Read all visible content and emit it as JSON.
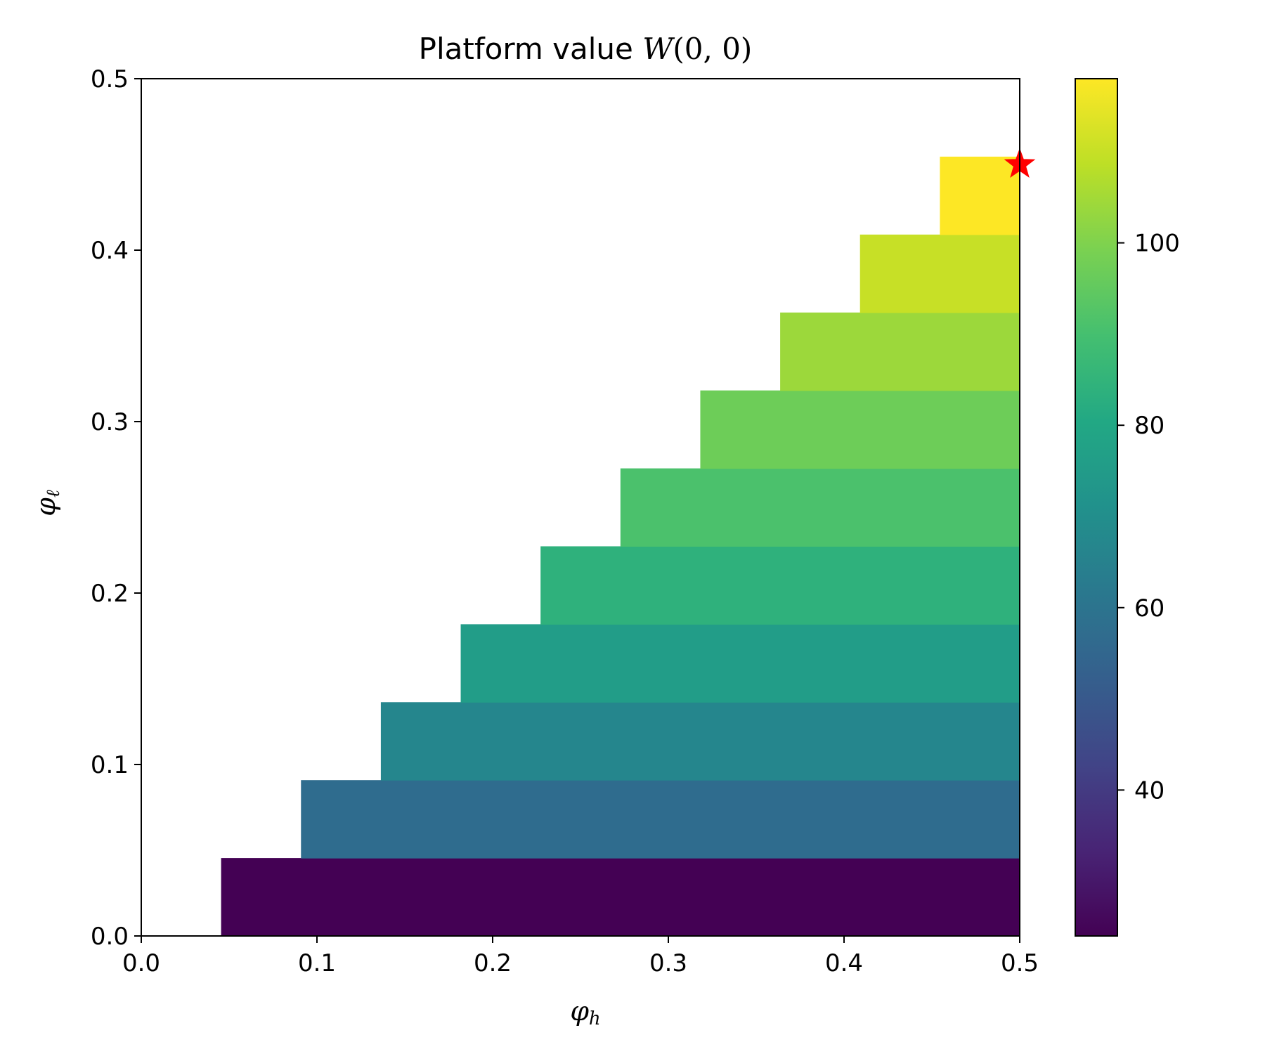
{
  "chart_data": {
    "type": "heatmap",
    "title": "Platform value W(0, 0)",
    "title_parts": {
      "prefix": "Platform value ",
      "var": "W",
      "args": "(0, 0)"
    },
    "xlabel": "φh",
    "xlabel_parts": {
      "base": "φ",
      "sub": "h"
    },
    "ylabel": "φℓ",
    "ylabel_parts": {
      "base": "φ",
      "sub": "ℓ"
    },
    "xlim": [
      0,
      0.5
    ],
    "ylim": [
      0,
      0.5
    ],
    "xticks": [
      "0.0",
      "0.1",
      "0.2",
      "0.3",
      "0.4",
      "0.5"
    ],
    "yticks": [
      "0.0",
      "0.1",
      "0.2",
      "0.3",
      "0.4",
      "0.5"
    ],
    "colormap": "viridis",
    "colorbar": {
      "range": [
        24,
        118
      ],
      "ticks": [
        40,
        60,
        80,
        100
      ],
      "tick_labels": [
        "40",
        "60",
        "80",
        "100"
      ]
    },
    "rows": [
      {
        "phi_l": 0.0,
        "x_start": 0.04545,
        "value": 24
      },
      {
        "phi_l": 0.04545,
        "x_start": 0.09091,
        "value": 57
      },
      {
        "phi_l": 0.09091,
        "x_start": 0.13636,
        "value": 67
      },
      {
        "phi_l": 0.13636,
        "x_start": 0.18182,
        "value": 76
      },
      {
        "phi_l": 0.18182,
        "x_start": 0.22727,
        "value": 84
      },
      {
        "phi_l": 0.22727,
        "x_start": 0.27273,
        "value": 91
      },
      {
        "phi_l": 0.27273,
        "x_start": 0.31818,
        "value": 97
      },
      {
        "phi_l": 0.31818,
        "x_start": 0.36364,
        "value": 104
      },
      {
        "phi_l": 0.36364,
        "x_start": 0.40909,
        "value": 110
      },
      {
        "phi_l": 0.40909,
        "x_start": 0.45455,
        "value": 118
      }
    ],
    "row_height": 0.04545,
    "x_end": 0.5,
    "marker": {
      "shape": "star",
      "color": "#ff0000",
      "x": 0.5,
      "y": 0.45
    }
  }
}
